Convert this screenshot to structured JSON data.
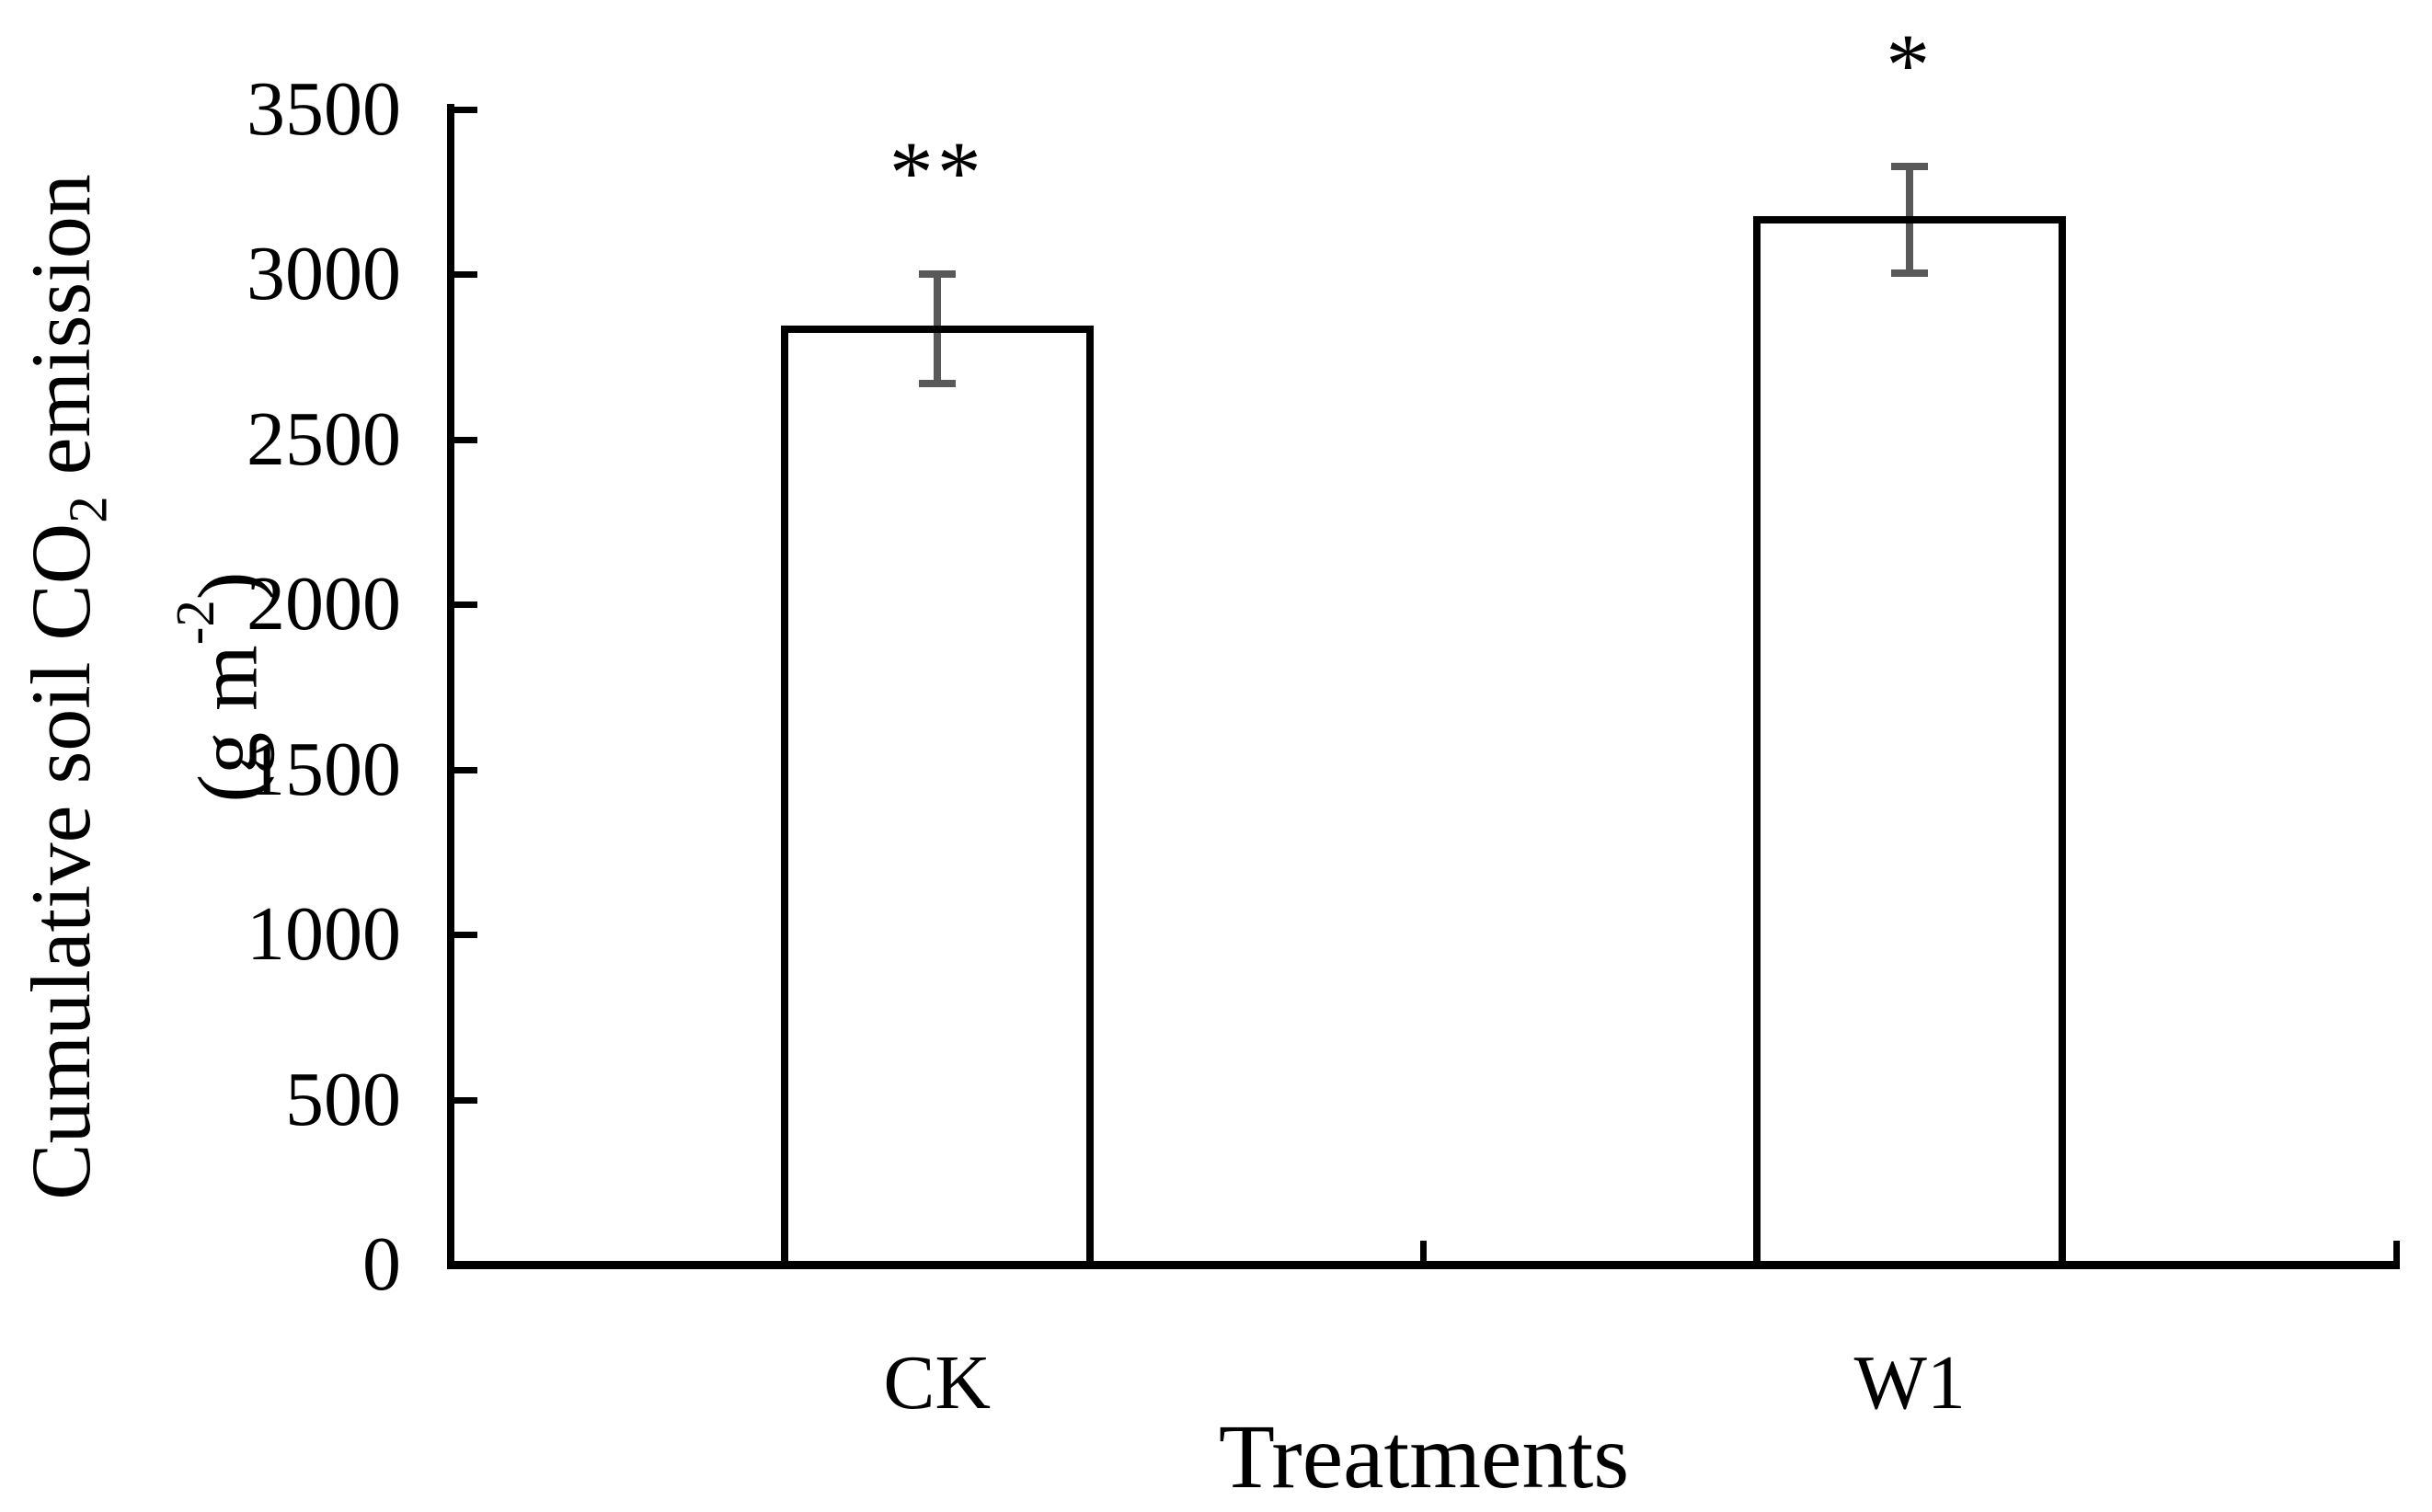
{
  "figure": {
    "background": "#ffffff",
    "description": "Bar chart comparing cumulative soil CO2 emission between two treatments"
  },
  "chart_data": {
    "type": "bar",
    "categories": [
      "CK",
      "W1"
    ],
    "values": [
      2835,
      3165
    ],
    "errors": [
      165,
      162
    ],
    "error_caps": [
      {
        "category": "CK",
        "upper": 3000,
        "lower": 2670
      },
      {
        "category": "W1",
        "upper": 3327,
        "lower": 3003
      }
    ],
    "significance": [
      "**",
      "*"
    ],
    "xlabel": "Treatments",
    "ylabel": "Cumulative soil CO2 emission (g m-2)",
    "ylabel_parts": {
      "line1_pre": "Cumulative soil CO",
      "line1_sub": "2",
      "line1_post": " emission",
      "line2_pre": "(g m",
      "line2_sup": "-2",
      "line2_post": ")"
    },
    "ylim": [
      0,
      3500
    ],
    "ytick_step": 500,
    "yticks": [
      0,
      500,
      1000,
      1500,
      2000,
      2500,
      3000,
      3500
    ],
    "ytick_labels": [
      "0",
      "500",
      "1000",
      "1500",
      "2000",
      "2500",
      "3000",
      "3500"
    ],
    "grid": false,
    "legend": "none",
    "bar_fill": "#ffffff",
    "bar_border_color": "#000000",
    "error_bar_color": "#595959",
    "axis_color": "#000000",
    "text_color": "#000000"
  }
}
